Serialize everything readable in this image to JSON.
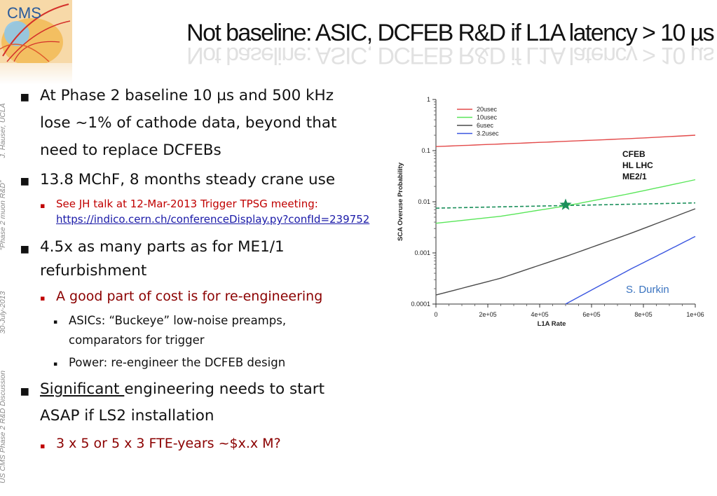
{
  "header": {
    "title": "Not baseline: ASIC, DCFEB R&D if L1A latency > 10 µs",
    "logo_text": "CMS"
  },
  "sidebar": {
    "footer": "US CMS Phase 2 R&D Discussion",
    "date": "30-July-2013",
    "topic": "“Phase 2 muon R&D”",
    "author": "J. Hauser, UCLA"
  },
  "bullets": {
    "b1_line1": "At Phase 2 baseline 10 µs and 500 kHz",
    "b1_line2": "lose ~1% of cathode data, beyond that",
    "b1_line3": "need to replace DCFEBs",
    "b2": "13.8 MChF, 8 months steady crane use",
    "b2_sub1": "See JH talk at 12-Mar-2013 Trigger TPSG meeting:",
    "b2_link": "https://indico.cern.ch/conferenceDisplay.py?confId=239752",
    "b3_line1": "4.5x as many parts as for ME1/1",
    "b3_line2": "refurbishment",
    "b3_sub1": "A good part of cost is  for re-engineering",
    "b3_sub1a_line1": "ASICs: “Buckeye” low-noise preamps,",
    "b3_sub1a_line2": "comparators for trigger",
    "b3_sub1b": "Power: re-engineer the DCFEB design",
    "b4_underlined": "Significant ",
    "b4_rest": "engineering needs to start",
    "b4_line2": "ASAP if LS2 installation",
    "b4_sub1": "3 x 5 or 5 x 3 FTE-years ~$x.x M?"
  },
  "chart_data": {
    "type": "line",
    "xlabel": "L1A Rate",
    "ylabel": "SCA Overuse Probability",
    "xlim": [
      0,
      1000000
    ],
    "ylim": [
      0.0001,
      1
    ],
    "yscale": "log",
    "xticks": [
      "0",
      "2e+05",
      "4e+05",
      "6e+05",
      "8e+05",
      "1e+06"
    ],
    "yticks": [
      "0.0001",
      "0.001",
      "0.01",
      "0.1",
      "1"
    ],
    "annotation": "CFEB\nHL LHC\nME2/1",
    "credit": "S. Durkin",
    "legend_position": "top-left",
    "series": [
      {
        "name": "20usec",
        "color": "#e34a4a",
        "x": [
          0,
          250000,
          500000,
          750000,
          1000000
        ],
        "y": [
          0.12,
          0.135,
          0.152,
          0.172,
          0.2
        ]
      },
      {
        "name": "10usec",
        "color": "#59e659",
        "x": [
          0,
          250000,
          500000,
          750000,
          1000000
        ],
        "y": [
          0.0038,
          0.0052,
          0.0083,
          0.0145,
          0.027
        ]
      },
      {
        "name": "6usec",
        "color": "#4a4a4a",
        "x": [
          0,
          250000,
          500000,
          750000,
          1000000
        ],
        "y": [
          0.00015,
          0.00032,
          0.00085,
          0.0024,
          0.0073
        ]
      },
      {
        "name": "3.2usec",
        "color": "#3a56e0",
        "x": [
          500000,
          625000,
          750000,
          875000,
          1000000
        ],
        "y": [
          0.0001,
          0.00022,
          0.00048,
          0.001,
          0.0021
        ]
      }
    ],
    "reference_line": {
      "color": "#1a8f5a",
      "y_start": 0.0075,
      "y_end": 0.0095
    },
    "marker": {
      "x": 500000,
      "y": 0.0087,
      "color": "#1a8f5a",
      "shape": "star"
    }
  }
}
